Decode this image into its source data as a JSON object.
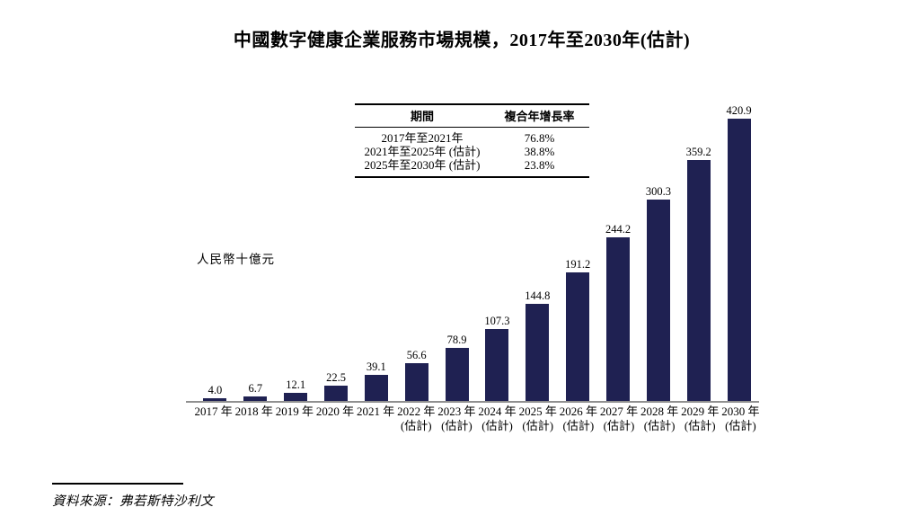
{
  "page": {
    "title": "中國數字健康企業服務市場規模，2017年至2030年(估計)",
    "source_label": "資料來源：弗若斯特沙利文"
  },
  "cagr_table": {
    "headers": [
      "期間",
      "複合年增長率"
    ],
    "rows": [
      {
        "period": "2017年至2021年",
        "cagr": "76.8%"
      },
      {
        "period": "2021年至2025年 (估計)",
        "cagr": "38.8%"
      },
      {
        "period": "2025年至2030年 (估計)",
        "cagr": "23.8%"
      }
    ]
  },
  "chart_data": {
    "type": "bar",
    "title": "中國數字健康企業服務市場規模，2017年至2030年(估計)",
    "ylabel": "人民幣十億元",
    "xlabel": "",
    "categories": [
      "2017 年",
      "2018 年",
      "2019 年",
      "2020 年",
      "2021 年",
      "2022 年",
      "2023 年",
      "2024 年",
      "2025 年",
      "2026 年",
      "2027 年",
      "2028 年",
      "2029 年",
      "2030 年"
    ],
    "estimate_suffix": "(估計)",
    "estimate_from_index": 5,
    "values": [
      4.0,
      6.7,
      12.1,
      22.5,
      39.1,
      56.6,
      78.9,
      107.3,
      144.8,
      191.2,
      244.2,
      300.3,
      359.2,
      420.9
    ],
    "value_labels": [
      "4.0",
      "6.7",
      "12.1",
      "22.5",
      "39.1",
      "56.6",
      "78.9",
      "107.3",
      "144.8",
      "191.2",
      "244.2",
      "300.3",
      "359.2",
      "420.9"
    ],
    "ylim": [
      0,
      420.9
    ],
    "grid": false,
    "legend": "none",
    "bar_color": "#1f2152",
    "axis_color": "#909090"
  }
}
